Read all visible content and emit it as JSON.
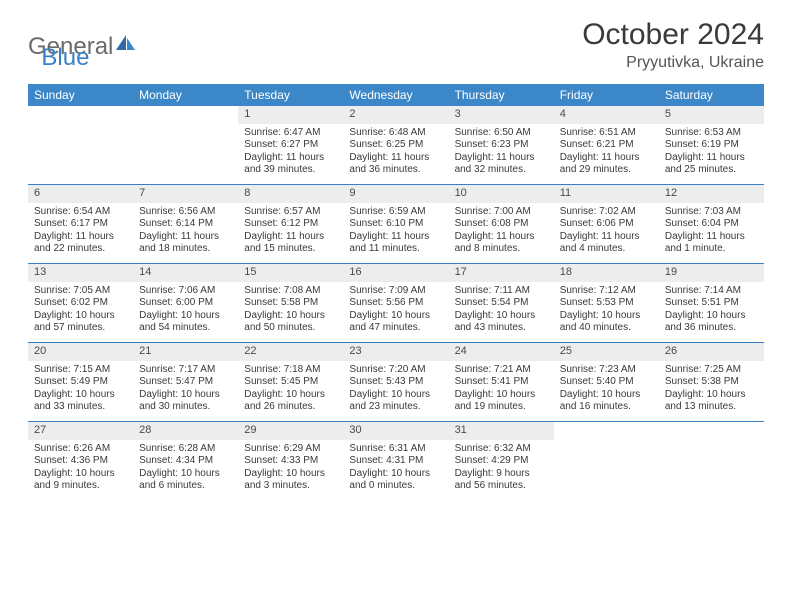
{
  "logo": {
    "text_gray": "General",
    "text_blue": "Blue"
  },
  "title": "October 2024",
  "location": "Pryyutivka, Ukraine",
  "colors": {
    "header_bg": "#3b87c8",
    "row_border": "#3b7fc4",
    "daybar_bg": "#ededed",
    "logo_gray": "#6b6b6b",
    "logo_blue": "#3b7fc4"
  },
  "weekdays": [
    "Sunday",
    "Monday",
    "Tuesday",
    "Wednesday",
    "Thursday",
    "Friday",
    "Saturday"
  ],
  "weeks": [
    [
      null,
      null,
      {
        "d": "1",
        "sr": "6:47 AM",
        "ss": "6:27 PM",
        "dl": "11 hours",
        "dl2": "and 39 minutes."
      },
      {
        "d": "2",
        "sr": "6:48 AM",
        "ss": "6:25 PM",
        "dl": "11 hours",
        "dl2": "and 36 minutes."
      },
      {
        "d": "3",
        "sr": "6:50 AM",
        "ss": "6:23 PM",
        "dl": "11 hours",
        "dl2": "and 32 minutes."
      },
      {
        "d": "4",
        "sr": "6:51 AM",
        "ss": "6:21 PM",
        "dl": "11 hours",
        "dl2": "and 29 minutes."
      },
      {
        "d": "5",
        "sr": "6:53 AM",
        "ss": "6:19 PM",
        "dl": "11 hours",
        "dl2": "and 25 minutes."
      }
    ],
    [
      {
        "d": "6",
        "sr": "6:54 AM",
        "ss": "6:17 PM",
        "dl": "11 hours",
        "dl2": "and 22 minutes."
      },
      {
        "d": "7",
        "sr": "6:56 AM",
        "ss": "6:14 PM",
        "dl": "11 hours",
        "dl2": "and 18 minutes."
      },
      {
        "d": "8",
        "sr": "6:57 AM",
        "ss": "6:12 PM",
        "dl": "11 hours",
        "dl2": "and 15 minutes."
      },
      {
        "d": "9",
        "sr": "6:59 AM",
        "ss": "6:10 PM",
        "dl": "11 hours",
        "dl2": "and 11 minutes."
      },
      {
        "d": "10",
        "sr": "7:00 AM",
        "ss": "6:08 PM",
        "dl": "11 hours",
        "dl2": "and 8 minutes."
      },
      {
        "d": "11",
        "sr": "7:02 AM",
        "ss": "6:06 PM",
        "dl": "11 hours",
        "dl2": "and 4 minutes."
      },
      {
        "d": "12",
        "sr": "7:03 AM",
        "ss": "6:04 PM",
        "dl": "11 hours",
        "dl2": "and 1 minute."
      }
    ],
    [
      {
        "d": "13",
        "sr": "7:05 AM",
        "ss": "6:02 PM",
        "dl": "10 hours",
        "dl2": "and 57 minutes."
      },
      {
        "d": "14",
        "sr": "7:06 AM",
        "ss": "6:00 PM",
        "dl": "10 hours",
        "dl2": "and 54 minutes."
      },
      {
        "d": "15",
        "sr": "7:08 AM",
        "ss": "5:58 PM",
        "dl": "10 hours",
        "dl2": "and 50 minutes."
      },
      {
        "d": "16",
        "sr": "7:09 AM",
        "ss": "5:56 PM",
        "dl": "10 hours",
        "dl2": "and 47 minutes."
      },
      {
        "d": "17",
        "sr": "7:11 AM",
        "ss": "5:54 PM",
        "dl": "10 hours",
        "dl2": "and 43 minutes."
      },
      {
        "d": "18",
        "sr": "7:12 AM",
        "ss": "5:53 PM",
        "dl": "10 hours",
        "dl2": "and 40 minutes."
      },
      {
        "d": "19",
        "sr": "7:14 AM",
        "ss": "5:51 PM",
        "dl": "10 hours",
        "dl2": "and 36 minutes."
      }
    ],
    [
      {
        "d": "20",
        "sr": "7:15 AM",
        "ss": "5:49 PM",
        "dl": "10 hours",
        "dl2": "and 33 minutes."
      },
      {
        "d": "21",
        "sr": "7:17 AM",
        "ss": "5:47 PM",
        "dl": "10 hours",
        "dl2": "and 30 minutes."
      },
      {
        "d": "22",
        "sr": "7:18 AM",
        "ss": "5:45 PM",
        "dl": "10 hours",
        "dl2": "and 26 minutes."
      },
      {
        "d": "23",
        "sr": "7:20 AM",
        "ss": "5:43 PM",
        "dl": "10 hours",
        "dl2": "and 23 minutes."
      },
      {
        "d": "24",
        "sr": "7:21 AM",
        "ss": "5:41 PM",
        "dl": "10 hours",
        "dl2": "and 19 minutes."
      },
      {
        "d": "25",
        "sr": "7:23 AM",
        "ss": "5:40 PM",
        "dl": "10 hours",
        "dl2": "and 16 minutes."
      },
      {
        "d": "26",
        "sr": "7:25 AM",
        "ss": "5:38 PM",
        "dl": "10 hours",
        "dl2": "and 13 minutes."
      }
    ],
    [
      {
        "d": "27",
        "sr": "6:26 AM",
        "ss": "4:36 PM",
        "dl": "10 hours",
        "dl2": "and 9 minutes."
      },
      {
        "d": "28",
        "sr": "6:28 AM",
        "ss": "4:34 PM",
        "dl": "10 hours",
        "dl2": "and 6 minutes."
      },
      {
        "d": "29",
        "sr": "6:29 AM",
        "ss": "4:33 PM",
        "dl": "10 hours",
        "dl2": "and 3 minutes."
      },
      {
        "d": "30",
        "sr": "6:31 AM",
        "ss": "4:31 PM",
        "dl": "10 hours",
        "dl2": "and 0 minutes."
      },
      {
        "d": "31",
        "sr": "6:32 AM",
        "ss": "4:29 PM",
        "dl": "9 hours",
        "dl2": "and 56 minutes."
      },
      null,
      null
    ]
  ],
  "labels": {
    "sunrise": "Sunrise:",
    "sunset": "Sunset:",
    "daylight": "Daylight:"
  }
}
